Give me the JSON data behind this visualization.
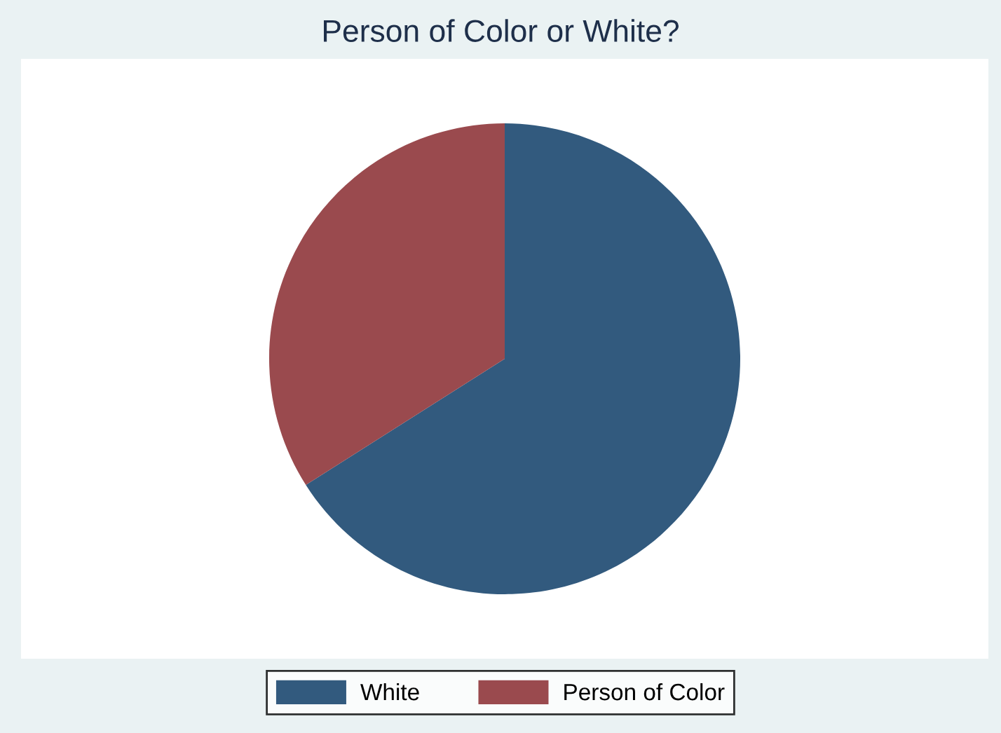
{
  "chart_data": {
    "type": "pie",
    "title": "Person of Color or White?",
    "categories": [
      "White",
      "Person of Color"
    ],
    "values": [
      66,
      34
    ],
    "colors": [
      "#325a7e",
      "#9a4a4e"
    ],
    "legend": "bottom"
  }
}
